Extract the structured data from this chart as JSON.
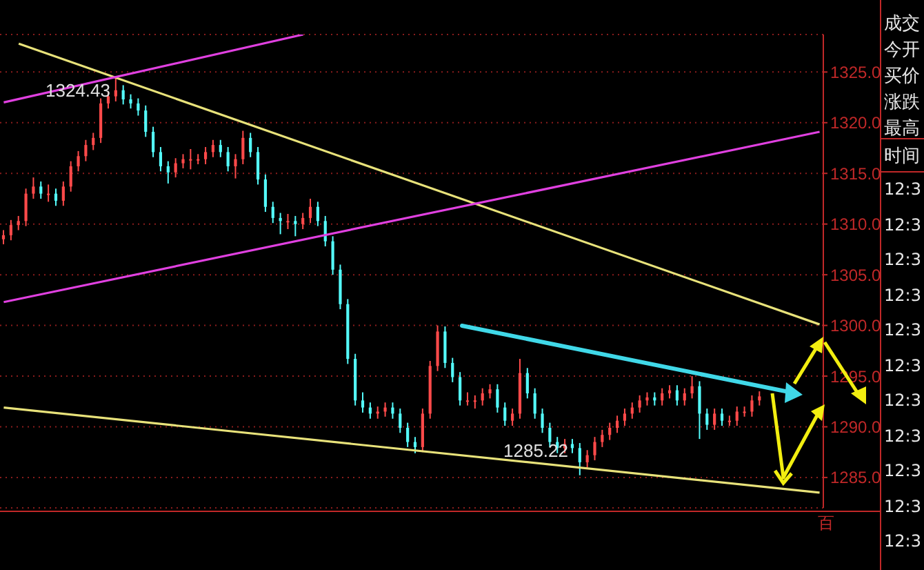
{
  "chart_data": [
    {
      "type": "candlestick",
      "categories": [
        null,
        null,
        null,
        null,
        null,
        null,
        null,
        null,
        null,
        null,
        null,
        null,
        null,
        null,
        null,
        null,
        null,
        null,
        null,
        null,
        null,
        null,
        null,
        null,
        null,
        null,
        null,
        null,
        null,
        null,
        null,
        null,
        null,
        null,
        null,
        null,
        null,
        null,
        null,
        null,
        null,
        null,
        null,
        null,
        null,
        null,
        null,
        null,
        null,
        null,
        null,
        null,
        null,
        null,
        null,
        null,
        null,
        null,
        null,
        null,
        null,
        null,
        null,
        null,
        null,
        null,
        null,
        null,
        null,
        null,
        null,
        null,
        null,
        null,
        null,
        null,
        null,
        null,
        null,
        null,
        null,
        null,
        null,
        null,
        null,
        null,
        null,
        null,
        null,
        null,
        null,
        null,
        null,
        null,
        null,
        null,
        null,
        null,
        null,
        null,
        null,
        null,
        null,
        null,
        null,
        null,
        null,
        null,
        null,
        null
      ],
      "ohlc": [
        [
          1308.5,
          1309.4,
          1308.0,
          1308.9
        ],
        [
          1308.9,
          1310.4,
          1308.4,
          1309.9
        ],
        [
          1309.9,
          1310.8,
          1309.4,
          1310.3
        ],
        [
          1310.3,
          1313.5,
          1309.8,
          1313.0
        ],
        [
          1313.0,
          1314.6,
          1312.5,
          1313.7
        ],
        [
          1313.7,
          1314.2,
          1312.5,
          1313.0
        ],
        [
          1313.0,
          1313.9,
          1312.2,
          1313.0
        ],
        [
          1313.0,
          1313.5,
          1311.8,
          1312.3
        ],
        [
          1312.3,
          1314.2,
          1311.8,
          1313.7
        ],
        [
          1313.7,
          1316.2,
          1313.2,
          1315.7
        ],
        [
          1315.7,
          1317.2,
          1315.2,
          1316.7
        ],
        [
          1316.7,
          1318.3,
          1316.2,
          1317.8
        ],
        [
          1317.8,
          1319.0,
          1317.3,
          1318.5
        ],
        [
          1318.5,
          1322.4,
          1318.0,
          1321.9
        ],
        [
          1321.9,
          1323.1,
          1321.4,
          1322.6
        ],
        [
          1322.6,
          1324.43,
          1322.1,
          1323.2
        ],
        [
          1323.2,
          1323.7,
          1321.8,
          1322.3
        ],
        [
          1322.3,
          1322.8,
          1321.4,
          1321.9
        ],
        [
          1321.9,
          1322.4,
          1320.7,
          1321.2
        ],
        [
          1321.2,
          1321.7,
          1318.6,
          1319.1
        ],
        [
          1319.1,
          1319.6,
          1316.6,
          1317.1
        ],
        [
          1317.1,
          1317.6,
          1315.2,
          1315.7
        ],
        [
          1315.7,
          1316.2,
          1314.0,
          1315.1
        ],
        [
          1315.1,
          1316.5,
          1314.6,
          1316.0
        ],
        [
          1316.0,
          1316.9,
          1315.5,
          1316.4
        ],
        [
          1316.4,
          1317.4,
          1315.4,
          1316.4
        ],
        [
          1316.4,
          1316.9,
          1315.9,
          1316.4
        ],
        [
          1316.4,
          1317.6,
          1315.9,
          1317.1
        ],
        [
          1317.1,
          1318.3,
          1316.6,
          1317.8
        ],
        [
          1317.8,
          1318.3,
          1316.6,
          1317.1
        ],
        [
          1317.1,
          1317.6,
          1315.2,
          1315.7
        ],
        [
          1315.7,
          1316.9,
          1314.5,
          1316.4
        ],
        [
          1316.4,
          1319.2,
          1315.9,
          1318.5
        ],
        [
          1318.5,
          1319.0,
          1316.6,
          1317.1
        ],
        [
          1317.1,
          1317.6,
          1313.9,
          1314.4
        ],
        [
          1314.4,
          1314.9,
          1311.2,
          1311.7
        ],
        [
          1311.7,
          1312.2,
          1310.1,
          1310.6
        ],
        [
          1310.6,
          1311.1,
          1309.0,
          1310.3
        ],
        [
          1310.3,
          1311.0,
          1309.5,
          1310.3
        ],
        [
          1310.3,
          1310.8,
          1308.8,
          1310.0
        ],
        [
          1310.0,
          1311.1,
          1309.5,
          1310.6
        ],
        [
          1310.6,
          1312.5,
          1310.1,
          1311.7
        ],
        [
          1311.7,
          1312.2,
          1309.8,
          1310.3
        ],
        [
          1310.3,
          1310.8,
          1307.8,
          1308.3
        ],
        [
          1308.3,
          1308.8,
          1305.0,
          1305.5
        ],
        [
          1305.5,
          1306.0,
          1301.6,
          1302.1
        ],
        [
          1302.1,
          1302.6,
          1296.2,
          1296.7
        ],
        [
          1296.7,
          1297.2,
          1292.1,
          1292.6
        ],
        [
          1292.6,
          1293.4,
          1291.4,
          1291.9
        ],
        [
          1291.9,
          1292.4,
          1290.8,
          1291.3
        ],
        [
          1291.3,
          1292.0,
          1290.8,
          1291.5
        ],
        [
          1291.5,
          1292.4,
          1291.0,
          1291.9
        ],
        [
          1291.9,
          1292.4,
          1290.8,
          1291.3
        ],
        [
          1291.3,
          1291.8,
          1289.4,
          1289.9
        ],
        [
          1289.9,
          1290.4,
          1288.0,
          1288.5
        ],
        [
          1288.5,
          1289.0,
          1287.4,
          1288.0
        ],
        [
          1288.0,
          1291.8,
          1287.5,
          1291.3
        ],
        [
          1291.3,
          1296.5,
          1290.8,
          1296.0
        ],
        [
          1296.0,
          1300.0,
          1295.5,
          1299.4
        ],
        [
          1299.4,
          1299.9,
          1295.8,
          1296.3
        ],
        [
          1296.3,
          1296.8,
          1294.4,
          1294.9
        ],
        [
          1294.9,
          1295.4,
          1292.1,
          1292.6
        ],
        [
          1292.6,
          1293.4,
          1292.1,
          1292.6
        ],
        [
          1292.6,
          1293.1,
          1291.8,
          1292.6
        ],
        [
          1292.6,
          1293.8,
          1292.1,
          1293.3
        ],
        [
          1293.3,
          1294.2,
          1292.8,
          1293.7
        ],
        [
          1293.7,
          1294.2,
          1291.4,
          1291.9
        ],
        [
          1291.9,
          1292.4,
          1290.1,
          1290.6
        ],
        [
          1290.6,
          1291.8,
          1290.1,
          1291.3
        ],
        [
          1291.3,
          1296.7,
          1290.8,
          1295.3
        ],
        [
          1295.3,
          1295.8,
          1292.8,
          1293.3
        ],
        [
          1293.3,
          1293.8,
          1290.8,
          1291.3
        ],
        [
          1291.3,
          1291.8,
          1289.4,
          1289.9
        ],
        [
          1289.9,
          1290.4,
          1288.0,
          1288.5
        ],
        [
          1288.5,
          1289.0,
          1287.4,
          1287.9
        ],
        [
          1287.9,
          1288.8,
          1287.4,
          1288.3
        ],
        [
          1288.3,
          1288.8,
          1287.4,
          1287.9
        ],
        [
          1287.9,
          1288.4,
          1285.22,
          1286.5
        ],
        [
          1286.5,
          1287.7,
          1286.0,
          1287.2
        ],
        [
          1287.2,
          1289.0,
          1286.7,
          1288.5
        ],
        [
          1288.5,
          1289.7,
          1288.0,
          1289.2
        ],
        [
          1289.2,
          1290.4,
          1288.7,
          1289.9
        ],
        [
          1289.9,
          1291.1,
          1289.4,
          1290.6
        ],
        [
          1290.6,
          1291.8,
          1290.1,
          1291.3
        ],
        [
          1291.3,
          1292.4,
          1290.8,
          1291.9
        ],
        [
          1291.9,
          1293.1,
          1291.4,
          1292.6
        ],
        [
          1292.6,
          1293.4,
          1292.1,
          1292.9
        ],
        [
          1292.9,
          1293.4,
          1292.1,
          1292.6
        ],
        [
          1292.6,
          1293.8,
          1292.1,
          1293.3
        ],
        [
          1293.3,
          1294.1,
          1292.8,
          1293.6
        ],
        [
          1293.6,
          1294.1,
          1292.1,
          1292.6
        ],
        [
          1292.6,
          1293.8,
          1292.1,
          1293.3
        ],
        [
          1293.3,
          1295.0,
          1292.8,
          1294.0
        ],
        [
          1294.0,
          1294.5,
          1288.8,
          1291.3
        ],
        [
          1291.3,
          1291.8,
          1289.7,
          1290.2
        ],
        [
          1290.2,
          1291.8,
          1289.7,
          1291.3
        ],
        [
          1291.3,
          1291.8,
          1290.1,
          1290.6
        ],
        [
          1290.6,
          1291.1,
          1290.1,
          1290.6
        ],
        [
          1290.6,
          1292.0,
          1290.1,
          1291.5
        ],
        [
          1291.5,
          1292.0,
          1291.0,
          1291.5
        ],
        [
          1291.5,
          1293.1,
          1291.0,
          1292.6
        ],
        [
          1292.6,
          1293.5,
          1292.1,
          1293.0
        ],
        null,
        null,
        null,
        null,
        null,
        null,
        null,
        null
      ],
      "series": [
        {
          "type": "line",
          "color": "#e8e27a",
          "values": [
            null,
            null,
            1327.8,
            null,
            null,
            null,
            null,
            null,
            null,
            null,
            null,
            null,
            null,
            null,
            null,
            null,
            null,
            null,
            null,
            null,
            null,
            null,
            null,
            null,
            null,
            null,
            null,
            null,
            null,
            null,
            null,
            null,
            null,
            null,
            null,
            null,
            null,
            null,
            null,
            null,
            null,
            null,
            null,
            null,
            null,
            null,
            null,
            null,
            null,
            null,
            null,
            null,
            null,
            null,
            null,
            null,
            null,
            null,
            null,
            null,
            null,
            null,
            null,
            null,
            null,
            null,
            null,
            null,
            null,
            null,
            null,
            null,
            null,
            null,
            null,
            null,
            null,
            null,
            null,
            null,
            null,
            null,
            null,
            null,
            null,
            null,
            null,
            null,
            null,
            null,
            null,
            null,
            null,
            null,
            null,
            null,
            null,
            null,
            null,
            null,
            null,
            null,
            null,
            null,
            null,
            null,
            null,
            null,
            null,
            1300.1
          ]
        },
        {
          "type": "line",
          "color": "#e040e0",
          "values": [
            1322.0,
            null,
            null,
            null,
            null,
            null,
            null,
            null,
            null,
            null,
            null,
            null,
            null,
            null,
            null,
            null,
            null,
            null,
            null,
            null,
            null,
            null,
            null,
            null,
            null,
            null,
            null,
            null,
            null,
            null,
            null,
            null,
            null,
            null,
            null,
            null,
            null,
            null,
            null,
            null,
            1328.7,
            null,
            null,
            null,
            null,
            null,
            null,
            null,
            null,
            null,
            null,
            null,
            null,
            null,
            null,
            null,
            null,
            null,
            null,
            null,
            null,
            null,
            null,
            null,
            null,
            null,
            null,
            null,
            null,
            null,
            null,
            null,
            null,
            null,
            null,
            null,
            null,
            null,
            null,
            null,
            null,
            null,
            null,
            null,
            null,
            null,
            null,
            null,
            null,
            null,
            null,
            null,
            null,
            null,
            null,
            null,
            null,
            null,
            null,
            null,
            null,
            null,
            null,
            null,
            null,
            null,
            null,
            null,
            null,
            null
          ]
        },
        {
          "type": "line",
          "color": "#e040e0",
          "values": [
            1302.3,
            null,
            null,
            null,
            null,
            null,
            null,
            null,
            null,
            null,
            null,
            null,
            null,
            null,
            null,
            null,
            null,
            null,
            null,
            null,
            null,
            null,
            null,
            null,
            null,
            null,
            null,
            null,
            null,
            null,
            null,
            null,
            null,
            null,
            null,
            null,
            null,
            null,
            null,
            null,
            null,
            null,
            null,
            null,
            null,
            null,
            null,
            null,
            null,
            null,
            null,
            null,
            null,
            null,
            null,
            null,
            null,
            null,
            null,
            null,
            null,
            null,
            null,
            null,
            null,
            null,
            null,
            null,
            null,
            null,
            null,
            null,
            null,
            null,
            null,
            null,
            null,
            null,
            null,
            null,
            null,
            null,
            null,
            null,
            null,
            null,
            null,
            null,
            null,
            null,
            null,
            null,
            null,
            null,
            null,
            null,
            null,
            null,
            null,
            null,
            null,
            null,
            null,
            null,
            null,
            null,
            null,
            null,
            null,
            1319.1
          ]
        },
        {
          "type": "line",
          "color": "#e8e27a",
          "values": [
            1291.9,
            null,
            null,
            null,
            null,
            null,
            null,
            null,
            null,
            null,
            null,
            null,
            null,
            null,
            null,
            null,
            null,
            null,
            null,
            null,
            null,
            null,
            null,
            null,
            null,
            null,
            null,
            null,
            null,
            null,
            null,
            null,
            null,
            null,
            null,
            null,
            null,
            null,
            null,
            null,
            null,
            null,
            null,
            null,
            null,
            null,
            null,
            null,
            null,
            null,
            null,
            null,
            null,
            null,
            null,
            null,
            null,
            null,
            null,
            null,
            null,
            null,
            null,
            null,
            null,
            null,
            null,
            null,
            null,
            null,
            null,
            null,
            null,
            null,
            null,
            null,
            null,
            null,
            null,
            null,
            null,
            null,
            null,
            null,
            null,
            null,
            null,
            null,
            null,
            null,
            null,
            null,
            null,
            null,
            null,
            null,
            null,
            null,
            null,
            null,
            null,
            null,
            null,
            null,
            null,
            null,
            null,
            null,
            null,
            1283.5
          ]
        }
      ],
      "ylim": [
        1282,
        1328.7
      ],
      "yticks": [
        {
          "value": 1285,
          "label": "1285.0"
        },
        {
          "value": 1290,
          "label": "1290.0"
        },
        {
          "value": 1295,
          "label": "1295.0"
        },
        {
          "value": 1300,
          "label": "1300.0"
        },
        {
          "value": 1305,
          "label": "1305.0"
        },
        {
          "value": 1310,
          "label": "1310.0"
        },
        {
          "value": 1315,
          "label": "1315.0"
        },
        {
          "value": 1320,
          "label": "1320.0"
        },
        {
          "value": 1325,
          "label": "1325.0"
        }
      ],
      "grid": "y",
      "tick_labels": "y",
      "annotations": [
        "1324.43",
        "1285.22",
        "百"
      ]
    },
    {
      "type": "other",
      "annotations": [
        "成交",
        "今开",
        "买价",
        "涨跌",
        "最高",
        "时间",
        "12:3",
        "12:3",
        "12:3",
        "12:3",
        "12:3",
        "12:3",
        "12:3",
        "12:3",
        "12:3",
        "12:3",
        "12:3"
      ]
    }
  ]
}
